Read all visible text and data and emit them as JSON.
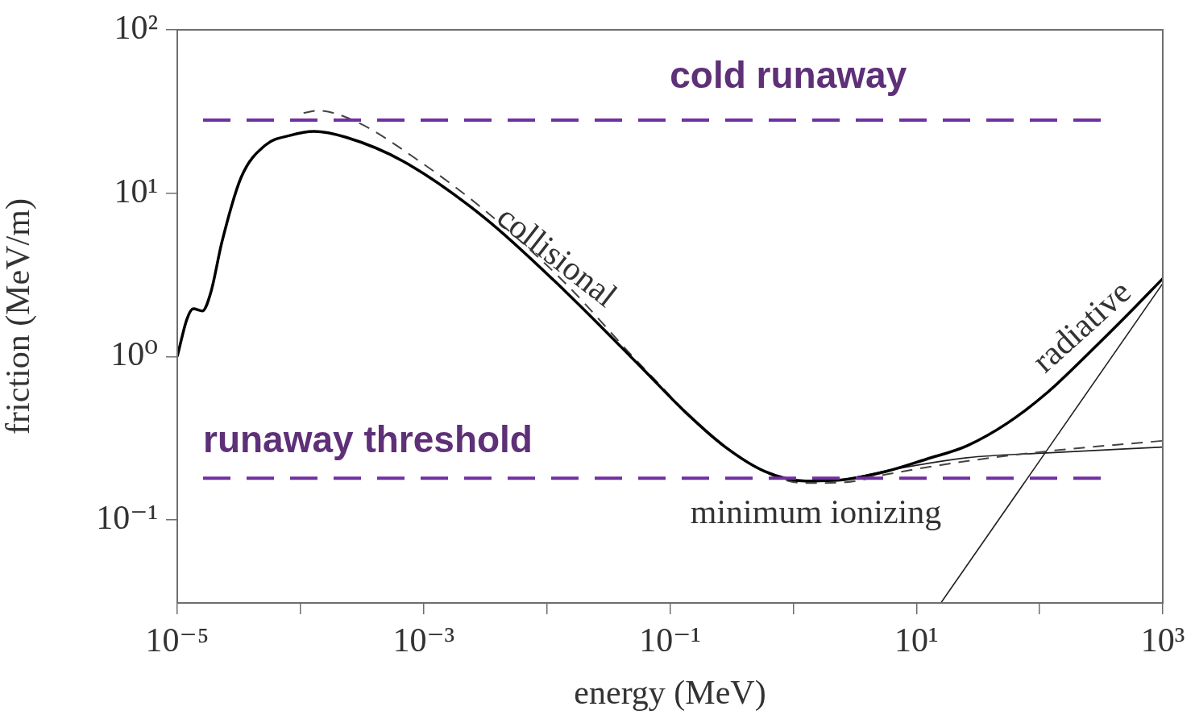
{
  "chart_data": {
    "type": "line",
    "xlabel": "energy (MeV)",
    "ylabel": "friction (MeV/m)",
    "log": "xy",
    "grid": false,
    "legend": false,
    "xlim": [
      1e-05,
      1000
    ],
    "ylim": [
      0.031,
      100
    ],
    "xticks": [
      {
        "value": 1e-05,
        "label": "10⁻⁵"
      },
      {
        "value": 0.0001,
        "label": null
      },
      {
        "value": 0.001,
        "label": "10⁻³"
      },
      {
        "value": 0.01,
        "label": null
      },
      {
        "value": 0.1,
        "label": "10⁻¹"
      },
      {
        "value": 1,
        "label": null
      },
      {
        "value": 10,
        "label": "10¹"
      },
      {
        "value": 100,
        "label": null
      },
      {
        "value": 1000,
        "label": "10³"
      }
    ],
    "yticks": [
      {
        "value": 0.1,
        "label": "10⁻¹"
      },
      {
        "value": 1,
        "label": "10⁰"
      },
      {
        "value": 10,
        "label": "10¹"
      },
      {
        "value": 100,
        "label": "10²"
      }
    ],
    "series": [
      {
        "color": "#000000",
        "line_style": "solid",
        "x": [
          1e-05,
          1.2e-05,
          1.35e-05,
          1.6e-05,
          1.88e-05,
          2.3e-05,
          3.3e-05,
          5.2e-05,
          8.3e-05,
          0.000129,
          0.000234,
          0.00068,
          0.0031,
          0.0138,
          0.062,
          0.132,
          0.28,
          0.59,
          1.26,
          2.69,
          5.7,
          12,
          25.7,
          54.5,
          115,
          245,
          525,
          1000
        ],
        "values": [
          1.0,
          1.7,
          1.96,
          1.9,
          2.5,
          5.0,
          12.5,
          19.7,
          22.6,
          23.9,
          22,
          15.7,
          7.1,
          2.55,
          0.82,
          0.46,
          0.28,
          0.198,
          0.173,
          0.177,
          0.198,
          0.235,
          0.284,
          0.39,
          0.6,
          1.03,
          1.82,
          3.0
        ]
      },
      {
        "color": "#444444",
        "line_style": "dashed",
        "x": [
          0.000106,
          0.000138,
          0.000275,
          0.00089,
          0.0031,
          0.0138,
          0.062,
          0.28,
          1.26,
          2.69,
          5.7,
          25.7,
          115,
          1000
        ],
        "values": [
          31,
          32,
          27.7,
          16.0,
          7.9,
          2.86,
          0.84,
          0.28,
          0.168,
          0.17,
          0.19,
          0.229,
          0.263,
          0.305
        ]
      },
      {
        "color": "#222222",
        "line_style": "solid",
        "x": [
          1.26,
          2.69,
          5.7,
          25.7,
          115,
          1000
        ],
        "values": [
          0.173,
          0.178,
          0.2,
          0.24,
          0.257,
          0.279
        ]
      },
      {
        "color": "#222222",
        "line_style": "solid",
        "x": [
          15.8,
          1000
        ],
        "values": [
          0.031,
          2.8
        ]
      }
    ],
    "ref_lines": [
      {
        "axis": "y",
        "value": 28,
        "label": "cold runaway",
        "color": "#7030a0",
        "line_style": "dashed"
      },
      {
        "axis": "y",
        "value": 0.18,
        "label": "runaway threshold",
        "color": "#7030a0",
        "line_style": "dashed"
      }
    ],
    "annotations": [
      "collisional",
      "radiative",
      "minimum ionizing"
    ]
  }
}
